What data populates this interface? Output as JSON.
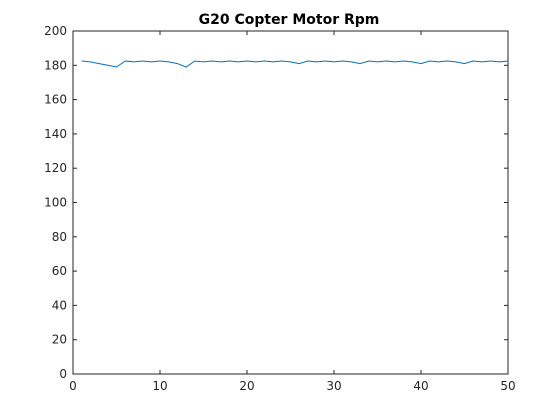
{
  "chart_data": {
    "type": "line",
    "title": "G20 Copter Motor Rpm",
    "xlabel": "",
    "ylabel": "",
    "xlim": [
      0,
      50
    ],
    "ylim": [
      0,
      200
    ],
    "xticks": [
      0,
      10,
      20,
      30,
      40,
      50
    ],
    "yticks": [
      0,
      20,
      40,
      60,
      80,
      100,
      120,
      140,
      160,
      180,
      200
    ],
    "grid": false,
    "line_color": "#0072bd",
    "series": [
      {
        "x": [
          1,
          2,
          3,
          4,
          5,
          6,
          7,
          8,
          9,
          10,
          11,
          12,
          13,
          14,
          15,
          16,
          17,
          18,
          19,
          20,
          21,
          22,
          23,
          24,
          25,
          26,
          27,
          28,
          29,
          30,
          31,
          32,
          33,
          34,
          35,
          36,
          37,
          38,
          39,
          40,
          41,
          42,
          43,
          44,
          45,
          46,
          47,
          48,
          49,
          50
        ],
        "values": [
          182.5,
          182,
          181,
          180,
          179,
          182.5,
          182,
          182.5,
          182,
          182.5,
          182,
          181,
          179,
          182.5,
          182,
          182.5,
          182,
          182.5,
          182,
          182.5,
          182,
          182.5,
          182,
          182.5,
          182,
          181,
          182.5,
          182,
          182.5,
          182,
          182.5,
          182,
          181,
          182.5,
          182,
          182.5,
          182,
          182.5,
          182,
          181,
          182.5,
          182,
          182.5,
          182,
          181,
          182.5,
          182,
          182.5,
          182,
          182.5
        ]
      }
    ]
  }
}
